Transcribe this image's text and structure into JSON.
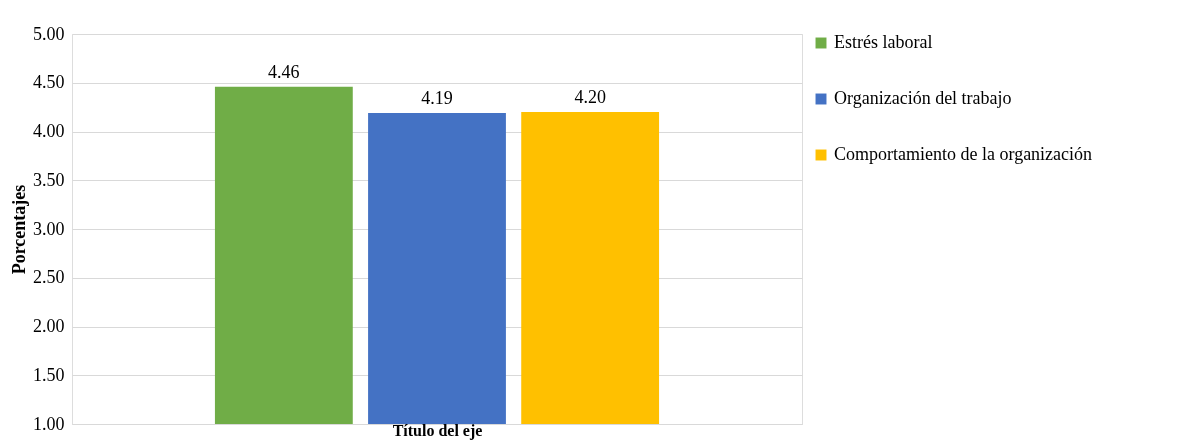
{
  "chart_data": {
    "type": "bar",
    "xlabel": "Título del eje",
    "ylabel": "Porcentajes",
    "categories": [
      null
    ],
    "series": [
      {
        "name": "Estrés laboral",
        "color": "#70ad47",
        "values": [
          4.46
        ],
        "value_labels": [
          "4.46"
        ]
      },
      {
        "name": "Organización del trabajo",
        "color": "#4472c4",
        "values": [
          4.19
        ],
        "value_labels": [
          "4.19"
        ]
      },
      {
        "name": "Comportamiento de la organización",
        "color": "#ffc000",
        "values": [
          4.2
        ],
        "value_labels": [
          "4.20"
        ]
      }
    ],
    "ylim": [
      1,
      5
    ],
    "yticks": [
      {
        "value": 1,
        "label": "1.00"
      },
      {
        "value": 1.5,
        "label": "1.50"
      },
      {
        "value": 2,
        "label": "2.00"
      },
      {
        "value": 2.5,
        "label": "2.50"
      },
      {
        "value": 3,
        "label": "3.00"
      },
      {
        "value": 3.5,
        "label": "3.50"
      },
      {
        "value": 4,
        "label": "4.00"
      },
      {
        "value": 4.5,
        "label": "4.50"
      },
      {
        "value": 5,
        "label": "5.00"
      }
    ],
    "grid": "y",
    "legend": "right"
  }
}
